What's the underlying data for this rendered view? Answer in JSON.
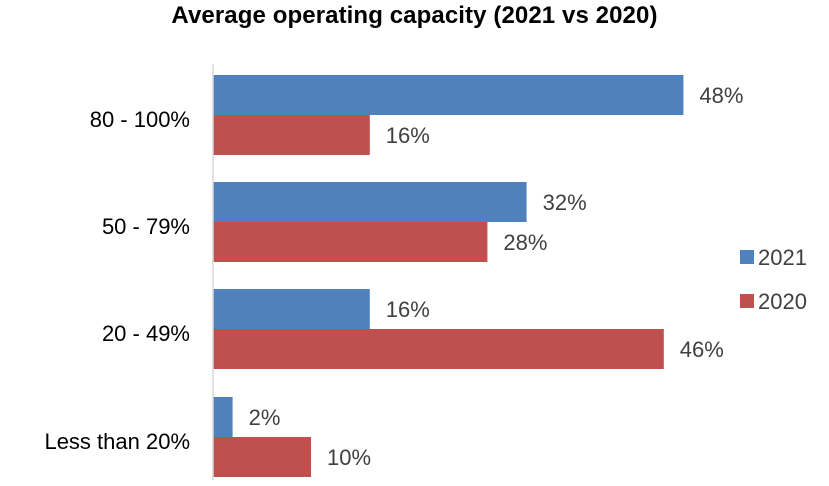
{
  "chart_data": {
    "type": "bar",
    "orientation": "horizontal",
    "title": "Average operating capacity (2021 vs 2020)",
    "categories": [
      "80 - 100%",
      "50 - 79%",
      "20 - 49%",
      "Less than 20%"
    ],
    "series": [
      {
        "name": "2021",
        "color": "#4f81bd",
        "values": [
          48,
          32,
          16,
          2
        ],
        "labels": [
          "48%",
          "32%",
          "16%",
          "2%"
        ]
      },
      {
        "name": "2020",
        "color": "#c0504d",
        "values": [
          16,
          28,
          46,
          10
        ],
        "labels": [
          "16%",
          "28%",
          "46%",
          "10%"
        ]
      }
    ],
    "xlim": [
      0,
      50
    ],
    "grid": false,
    "legend": "right"
  }
}
